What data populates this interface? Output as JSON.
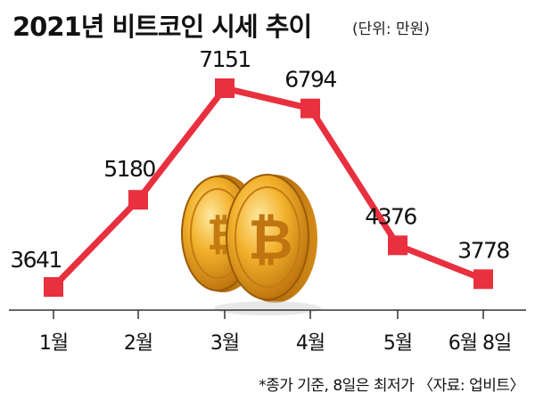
{
  "chart_data": {
    "type": "line",
    "title": "2021년 비트코인 시세 추이",
    "unit": "(단위: 만원)",
    "categories": [
      "1월",
      "2월",
      "3월",
      "4월",
      "5월",
      "6월 8일"
    ],
    "values": [
      3641,
      5180,
      7151,
      6794,
      4376,
      3778
    ],
    "value_labels": [
      "3641",
      "5180",
      "7151",
      "6794",
      "4376",
      "3778"
    ],
    "footnote": "*종가 기준, 8일은 최저가 〈자료: 업비트〉",
    "line_color": "#e8303f",
    "marker_color": "#e8303f",
    "axis_color": "#333333",
    "grid": false,
    "legend": "none",
    "decoration": "bitcoin-coins-icon"
  }
}
